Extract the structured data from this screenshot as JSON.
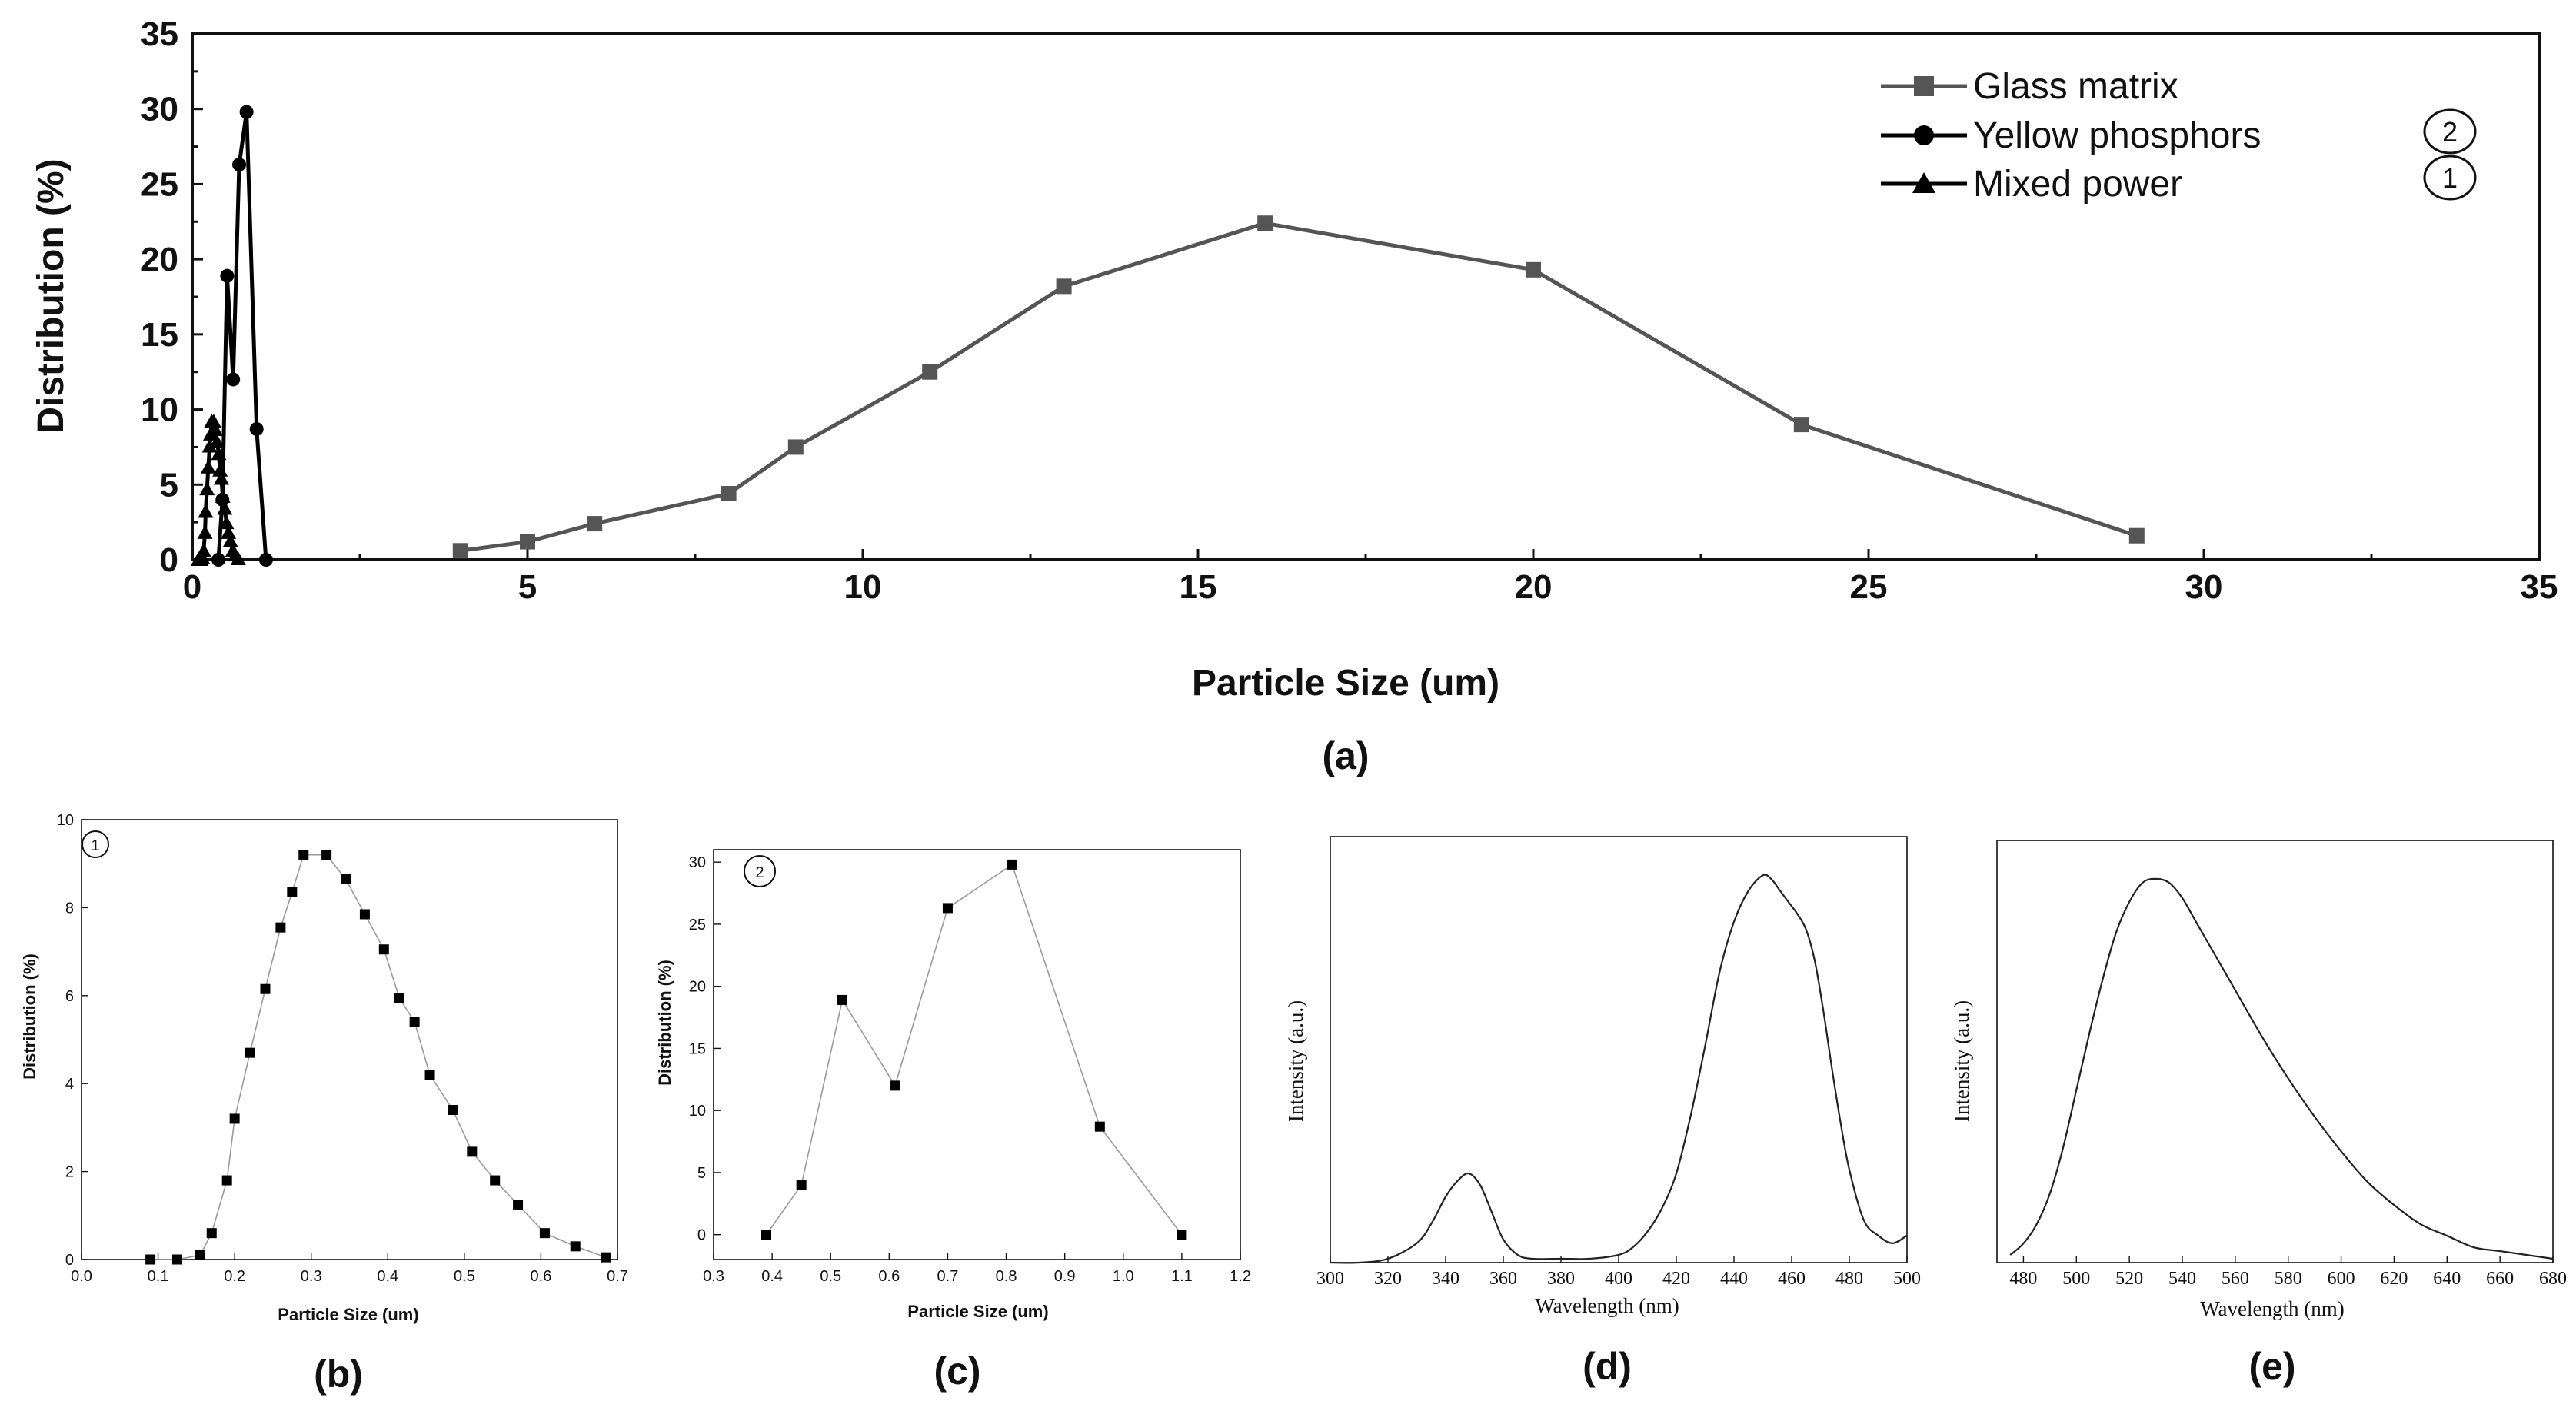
{
  "chart_data": [
    {
      "id": "a",
      "type": "line",
      "panel_label": "(a)",
      "xlabel": "Particle Size (um)",
      "ylabel": "Distribution (%)",
      "xlim": [
        0,
        35
      ],
      "ylim": [
        0,
        35
      ],
      "xticks": [
        "0",
        "5",
        "10",
        "15",
        "20",
        "25",
        "30",
        "35"
      ],
      "yticks": [
        "0",
        "5",
        "10",
        "15",
        "20",
        "25",
        "30",
        "35"
      ],
      "legend_position": "top-right",
      "series": [
        {
          "name": "Glass matrix",
          "marker": "square",
          "color": "#555555",
          "x": [
            4,
            5,
            6,
            8,
            9,
            11,
            13,
            16,
            20,
            24,
            29
          ],
          "y": [
            0.6,
            1.2,
            2.4,
            4.4,
            7.5,
            12.5,
            18.2,
            22.4,
            19.3,
            9.0,
            1.6
          ]
        },
        {
          "name": "Yellow phosphors",
          "marker": "circle",
          "color": "#000000",
          "annotation": "2",
          "x": [
            0.39,
            0.45,
            0.52,
            0.61,
            0.7,
            0.81,
            0.96,
            1.1
          ],
          "y": [
            0,
            4,
            18.9,
            12,
            26.3,
            29.8,
            8.7,
            0
          ]
        },
        {
          "name": "Mixed power",
          "marker": "triangle",
          "color": "#000000",
          "annotation": "1",
          "x": [
            0.09,
            0.125,
            0.155,
            0.17,
            0.19,
            0.2,
            0.22,
            0.24,
            0.26,
            0.275,
            0.29,
            0.32,
            0.345,
            0.37,
            0.395,
            0.415,
            0.435,
            0.455,
            0.485,
            0.51,
            0.54,
            0.57,
            0.605,
            0.645,
            0.685
          ],
          "y": [
            0,
            0,
            0.1,
            0.6,
            1.8,
            3.2,
            4.7,
            6.15,
            7.55,
            8.35,
            9.2,
            9.2,
            8.65,
            7.85,
            7.05,
            5.95,
            5.4,
            4.2,
            3.4,
            2.45,
            1.8,
            1.25,
            0.6,
            0.3,
            0.05
          ]
        }
      ]
    },
    {
      "id": "b",
      "type": "line",
      "panel_label": "(b)",
      "annotation": "1",
      "xlabel": "Particle Size (um)",
      "ylabel": "Distribution (%)",
      "xlim": [
        0,
        0.7
      ],
      "ylim": [
        0,
        10
      ],
      "xticks": [
        "0.0",
        "0.1",
        "0.2",
        "0.3",
        "0.4",
        "0.5",
        "0.6",
        "0.7"
      ],
      "yticks": [
        "0",
        "2",
        "4",
        "6",
        "8",
        "10"
      ],
      "x": [
        0.09,
        0.125,
        0.155,
        0.17,
        0.19,
        0.2,
        0.22,
        0.24,
        0.26,
        0.275,
        0.29,
        0.32,
        0.345,
        0.37,
        0.395,
        0.415,
        0.435,
        0.455,
        0.485,
        0.51,
        0.54,
        0.57,
        0.605,
        0.645,
        0.685
      ],
      "y": [
        0,
        0,
        0.1,
        0.6,
        1.8,
        3.2,
        4.7,
        6.15,
        7.55,
        8.35,
        9.2,
        9.2,
        8.65,
        7.85,
        7.05,
        5.95,
        5.4,
        4.2,
        3.4,
        2.45,
        1.8,
        1.25,
        0.6,
        0.3,
        0.05
      ]
    },
    {
      "id": "c",
      "type": "line",
      "panel_label": "(c)",
      "annotation": "2",
      "xlabel": "Particle Size (um)",
      "ylabel": "Distribution (%)",
      "xlim": [
        0.3,
        1.2
      ],
      "ylim": [
        -2,
        31
      ],
      "xticks": [
        "0.3",
        "0.4",
        "0.5",
        "0.6",
        "0.7",
        "0.8",
        "0.9",
        "1.0",
        "1.1",
        "1.2"
      ],
      "yticks": [
        "0",
        "5",
        "10",
        "15",
        "20",
        "25",
        "30"
      ],
      "x": [
        0.39,
        0.45,
        0.52,
        0.61,
        0.7,
        0.81,
        0.96,
        1.1
      ],
      "y": [
        0,
        4,
        18.9,
        12,
        26.3,
        29.8,
        8.7,
        0
      ]
    },
    {
      "id": "d",
      "type": "line",
      "panel_label": "(d)",
      "xlabel": "Wavelength (nm)",
      "ylabel": "Intensity (a.u.)",
      "xlim": [
        300,
        500
      ],
      "ylim": [
        0,
        1.1
      ],
      "xticks": [
        "300",
        "320",
        "340",
        "360",
        "380",
        "400",
        "420",
        "440",
        "460",
        "480",
        "500"
      ],
      "x": [
        300,
        310,
        320,
        330,
        335,
        340,
        344,
        348,
        352,
        356,
        360,
        365,
        370,
        380,
        390,
        400,
        405,
        410,
        415,
        420,
        425,
        430,
        435,
        440,
        445,
        450,
        453,
        456,
        459,
        462,
        465,
        468,
        471,
        474,
        477,
        480,
        485,
        490,
        495,
        500
      ],
      "y": [
        0.0,
        0.0,
        0.01,
        0.05,
        0.1,
        0.17,
        0.21,
        0.23,
        0.2,
        0.13,
        0.06,
        0.02,
        0.01,
        0.01,
        0.01,
        0.02,
        0.04,
        0.08,
        0.14,
        0.23,
        0.38,
        0.56,
        0.75,
        0.88,
        0.96,
        1.0,
        0.99,
        0.96,
        0.93,
        0.9,
        0.86,
        0.78,
        0.65,
        0.5,
        0.36,
        0.24,
        0.11,
        0.07,
        0.05,
        0.07
      ]
    },
    {
      "id": "e",
      "type": "line",
      "panel_label": "(e)",
      "xlabel": "Wavelength (nm)",
      "ylabel": "Intensity (a.u.)",
      "xlim": [
        470,
        680
      ],
      "ylim": [
        0,
        1.1
      ],
      "xticks": [
        "480",
        "500",
        "520",
        "540",
        "560",
        "580",
        "600",
        "620",
        "640",
        "660",
        "680"
      ],
      "x": [
        475,
        480,
        485,
        490,
        495,
        500,
        505,
        510,
        515,
        520,
        525,
        530,
        535,
        540,
        545,
        550,
        560,
        570,
        580,
        590,
        600,
        610,
        620,
        630,
        640,
        650,
        660,
        670,
        680
      ],
      "y": [
        0.02,
        0.05,
        0.1,
        0.18,
        0.3,
        0.45,
        0.6,
        0.74,
        0.86,
        0.94,
        0.99,
        1.0,
        0.99,
        0.95,
        0.89,
        0.83,
        0.71,
        0.59,
        0.48,
        0.38,
        0.29,
        0.21,
        0.15,
        0.1,
        0.07,
        0.04,
        0.03,
        0.02,
        0.01
      ]
    }
  ]
}
